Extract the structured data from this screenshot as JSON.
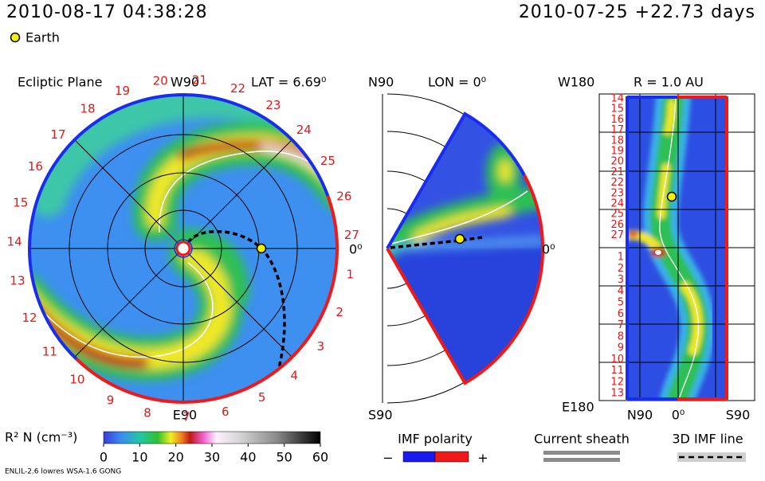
{
  "header": {
    "time": "2010-08-17 04:38:28",
    "run": "2010-07-25 +22.73 days",
    "earth_legend": "Earth"
  },
  "ecliptic": {
    "title": "Ecliptic Plane",
    "top": "W90",
    "bottom": "E90",
    "lat": "LAT = 6.69⁰",
    "right": "0⁰",
    "rim_labels": [
      "27",
      "1",
      "2",
      "3",
      "4",
      "5",
      "6",
      "7",
      "8",
      "9",
      "10",
      "11",
      "12",
      "13",
      "14",
      "15",
      "16",
      "17",
      "18",
      "19",
      "20",
      "21",
      "22",
      "23",
      "24",
      "25",
      "26"
    ]
  },
  "meridional": {
    "top": "N90",
    "bottom": "S90",
    "lon": "LON = 0⁰",
    "right": "0⁰"
  },
  "radial": {
    "top": "W180",
    "bottom": "E180",
    "r": "R = 1.0 AU",
    "x_labels": [
      "N90",
      "0⁰",
      "S90"
    ],
    "day_labels": [
      "14",
      "15",
      "16",
      "17",
      "18",
      "19",
      "20",
      "21",
      "22",
      "23",
      "24",
      "25",
      "26",
      "27",
      "1",
      "2",
      "3",
      "4",
      "5",
      "6",
      "7",
      "8",
      "9",
      "10",
      "11",
      "12",
      "13"
    ]
  },
  "colorbar": {
    "label": "R² N (cm⁻³)",
    "range": [
      0,
      60
    ],
    "ticks": [
      0,
      10,
      20,
      30,
      40,
      50,
      60
    ]
  },
  "legend": {
    "imf_polarity": "IMF polarity",
    "minus": "−",
    "plus": "+",
    "current_sheath": "Current sheath",
    "imf_line": "3D IMF line"
  },
  "footer": "ENLIL-2.6 lowres WSA-1.6 GONG"
}
